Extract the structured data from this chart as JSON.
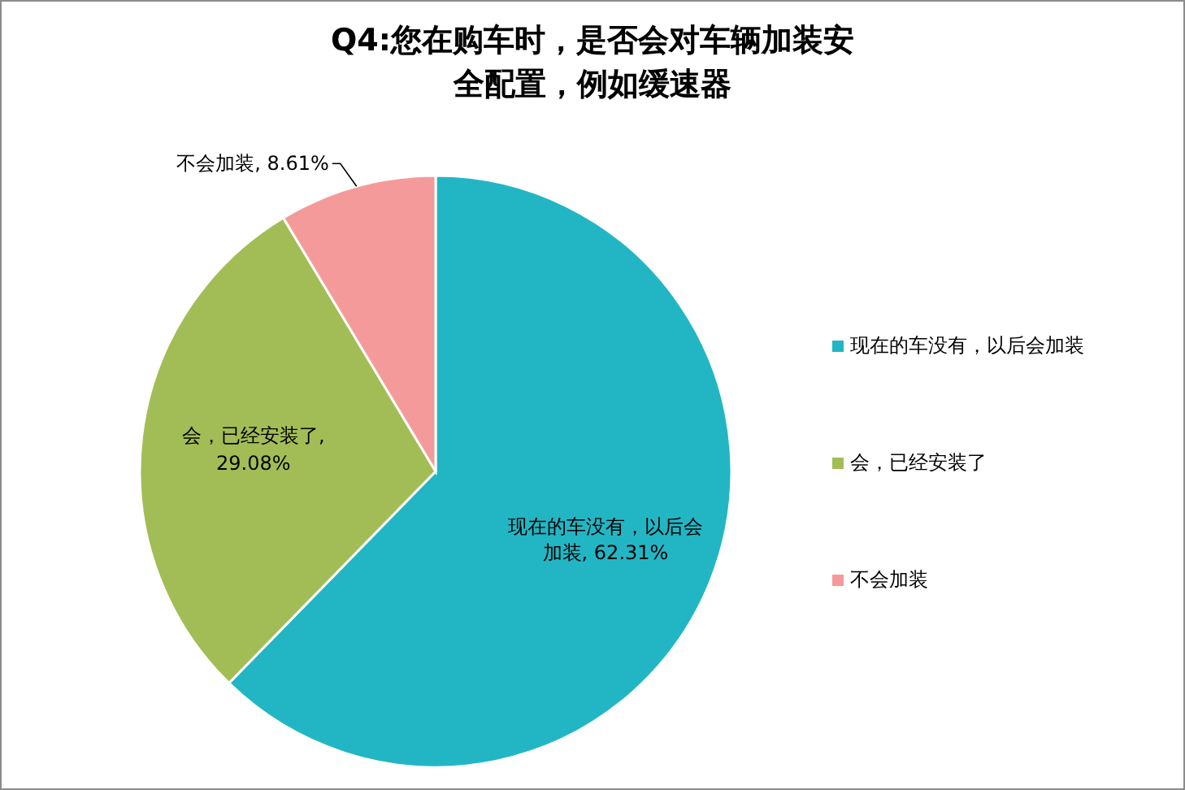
{
  "chart_data": {
    "type": "pie",
    "title": "Q4:您在购车时，是否会对车辆加装安全配置，例如缓速器",
    "categories": [
      "现在的车没有，以后会加装",
      "会，已经安装了",
      "不会加装"
    ],
    "values": [
      62.31,
      29.08,
      8.61
    ],
    "value_labels": [
      "现在的车没有，以后会加装, 62.31%",
      "会，已经安装了, 29.08%",
      "不会加装, 8.61%"
    ],
    "colors": [
      "#22b6c5",
      "#a3bd56",
      "#f59a9a"
    ],
    "legend": "right"
  }
}
